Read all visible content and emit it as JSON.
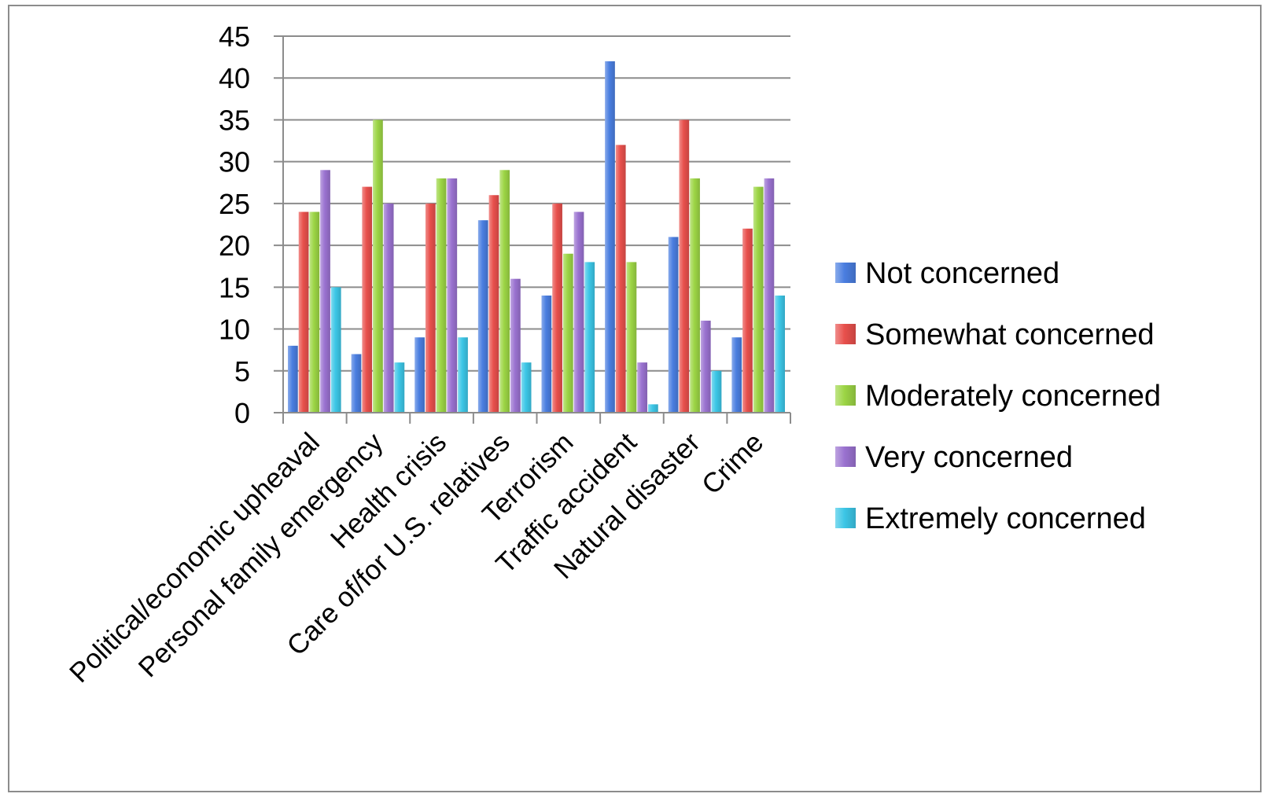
{
  "chart_data": {
    "type": "bar",
    "categories": [
      "Political/economic upheaval",
      "Personal family emergency",
      "Health crisis",
      "Care of/for U.S. relatives",
      "Terrorism",
      "Traffic accident",
      "Natural disaster",
      "Crime"
    ],
    "series": [
      {
        "name": "Not concerned",
        "color": "#4a7ee0",
        "values": [
          8,
          7,
          9,
          23,
          14,
          42,
          21,
          9
        ]
      },
      {
        "name": "Somewhat concerned",
        "color": "#e8504c",
        "values": [
          24,
          27,
          25,
          26,
          25,
          32,
          35,
          22
        ]
      },
      {
        "name": "Moderately concerned",
        "color": "#9cd545",
        "values": [
          24,
          35,
          28,
          29,
          19,
          18,
          28,
          27
        ]
      },
      {
        "name": "Very concerned",
        "color": "#9a72d0",
        "values": [
          29,
          25,
          28,
          16,
          24,
          6,
          11,
          28
        ]
      },
      {
        "name": "Extremely concerned",
        "color": "#3cc6e6",
        "values": [
          15,
          6,
          9,
          6,
          18,
          1,
          5,
          14
        ]
      }
    ],
    "yticks": [
      "0",
      "5",
      "10",
      "15",
      "20",
      "25",
      "30",
      "35",
      "40",
      "45"
    ],
    "ylim": [
      0,
      45
    ],
    "grid": true,
    "legend_position": "right"
  }
}
